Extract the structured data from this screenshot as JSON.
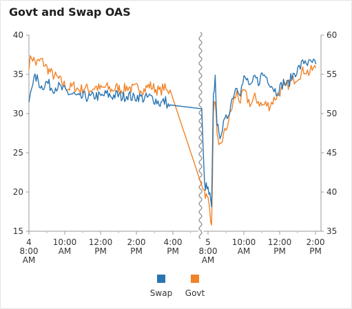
{
  "title": "Govt and Swap OAS",
  "chart_data": {
    "type": "line",
    "title": "Govt and Swap OAS",
    "x_ticks": [
      {
        "line1": "4",
        "line2": "8:00",
        "line3": "AM"
      },
      {
        "line1": "10:00",
        "line2": "AM",
        "line3": ""
      },
      {
        "line1": "12:00",
        "line2": "PM",
        "line3": ""
      },
      {
        "line1": "2:00",
        "line2": "PM",
        "line3": ""
      },
      {
        "line1": "4:00",
        "line2": "PM",
        "line3": ""
      },
      {
        "line1": "5",
        "line2": "8:00",
        "line3": "AM"
      },
      {
        "line1": "10:00",
        "line2": "AM",
        "line3": ""
      },
      {
        "line1": "12:00",
        "line2": "PM",
        "line3": ""
      },
      {
        "line1": "2:00",
        "line2": "PM",
        "line3": ""
      }
    ],
    "axis_break": "between 4:00 PM and 5 8:00 AM",
    "y_left": {
      "min": 15,
      "max": 40,
      "ticks": [
        "15",
        "20",
        "25",
        "30",
        "35",
        "40"
      ]
    },
    "y_right": {
      "min": 35,
      "max": 60,
      "ticks": [
        "35",
        "40",
        "45",
        "50",
        "55",
        "60"
      ]
    },
    "x_unit": "hours after 8:00 AM on each day",
    "series": [
      {
        "name": "Swap",
        "axis": "left",
        "color": "#2a74b0",
        "points": [
          [
            0.0,
            31.6
          ],
          [
            0.15,
            33.8
          ],
          [
            0.4,
            34.6
          ],
          [
            0.7,
            33.4
          ],
          [
            1.0,
            34.0
          ],
          [
            1.3,
            33.2
          ],
          [
            1.6,
            33.5
          ],
          [
            1.9,
            33.0
          ],
          [
            2.2,
            32.6
          ],
          [
            2.5,
            32.4
          ],
          [
            2.8,
            31.9
          ],
          [
            3.1,
            32.2
          ],
          [
            3.4,
            32.0
          ],
          [
            3.7,
            32.3
          ],
          [
            4.0,
            32.1
          ],
          [
            4.3,
            32.5
          ],
          [
            4.6,
            32.2
          ],
          [
            4.9,
            32.4
          ],
          [
            5.2,
            32.1
          ],
          [
            5.5,
            32.4
          ],
          [
            5.8,
            32.0
          ],
          [
            6.1,
            32.2
          ],
          [
            6.4,
            31.9
          ],
          [
            6.7,
            32.1
          ],
          [
            7.0,
            31.8
          ],
          [
            7.3,
            31.3
          ],
          [
            7.6,
            31.6
          ],
          [
            7.75,
            31.0
          ],
          [
            7.85,
            31.1
          ]
        ]
      },
      {
        "name": "Govt",
        "axis": "right",
        "color": "#f08228",
        "points": [
          [
            0.0,
            56.3
          ],
          [
            0.15,
            57.3
          ],
          [
            0.4,
            56.4
          ],
          [
            0.7,
            56.8
          ],
          [
            1.0,
            55.8
          ],
          [
            1.3,
            55.0
          ],
          [
            1.6,
            54.5
          ],
          [
            1.9,
            53.8
          ],
          [
            2.2,
            53.2
          ],
          [
            2.5,
            53.5
          ],
          [
            2.8,
            53.0
          ],
          [
            3.1,
            53.3
          ],
          [
            3.4,
            53.0
          ],
          [
            3.7,
            53.4
          ],
          [
            4.0,
            53.1
          ],
          [
            4.3,
            53.4
          ],
          [
            4.6,
            53.0
          ],
          [
            4.9,
            53.3
          ],
          [
            5.2,
            53.0
          ],
          [
            5.5,
            53.4
          ],
          [
            5.8,
            53.1
          ],
          [
            6.1,
            53.4
          ],
          [
            6.4,
            53.0
          ],
          [
            6.7,
            53.6
          ],
          [
            7.0,
            53.2
          ],
          [
            7.3,
            52.8
          ],
          [
            7.5,
            53.4
          ],
          [
            7.7,
            52.7
          ],
          [
            7.85,
            53.0
          ]
        ]
      }
    ],
    "series_day2": [
      {
        "name": "Swap",
        "points": [
          [
            -0.35,
            30.2
          ],
          [
            -0.2,
            21.0
          ],
          [
            -0.1,
            20.6
          ],
          [
            0.0,
            20.2
          ],
          [
            0.1,
            19.4
          ],
          [
            0.2,
            17.8
          ],
          [
            0.3,
            32.0
          ],
          [
            0.4,
            34.6
          ],
          [
            0.5,
            29.0
          ],
          [
            0.6,
            27.0
          ],
          [
            0.8,
            28.2
          ],
          [
            1.0,
            29.2
          ],
          [
            1.2,
            30.6
          ],
          [
            1.4,
            32.4
          ],
          [
            1.6,
            33.6
          ],
          [
            1.8,
            32.8
          ],
          [
            2.0,
            34.4
          ],
          [
            2.2,
            34.2
          ],
          [
            2.4,
            33.2
          ],
          [
            2.6,
            34.6
          ],
          [
            2.8,
            34.0
          ],
          [
            3.0,
            35.0
          ],
          [
            3.2,
            34.8
          ],
          [
            3.4,
            34.2
          ],
          [
            3.6,
            33.4
          ],
          [
            3.8,
            32.8
          ],
          [
            4.0,
            33.2
          ],
          [
            4.2,
            34.0
          ],
          [
            4.4,
            33.6
          ],
          [
            4.6,
            34.4
          ],
          [
            4.8,
            35.2
          ],
          [
            5.0,
            35.6
          ],
          [
            5.2,
            36.2
          ],
          [
            5.4,
            36.8
          ],
          [
            5.6,
            36.3
          ],
          [
            5.8,
            36.5
          ],
          [
            6.0,
            36.3
          ]
        ]
      },
      {
        "name": "Govt",
        "points": [
          [
            -0.35,
            41.2
          ],
          [
            -0.2,
            40.2
          ],
          [
            -0.1,
            39.4
          ],
          [
            0.0,
            39.0
          ],
          [
            0.1,
            38.2
          ],
          [
            0.2,
            35.2
          ],
          [
            0.3,
            50.0
          ],
          [
            0.4,
            52.0
          ],
          [
            0.5,
            47.0
          ],
          [
            0.6,
            45.4
          ],
          [
            0.8,
            46.8
          ],
          [
            1.0,
            48.0
          ],
          [
            1.2,
            49.6
          ],
          [
            1.4,
            51.4
          ],
          [
            1.6,
            52.6
          ],
          [
            1.8,
            51.6
          ],
          [
            2.0,
            52.8
          ],
          [
            2.2,
            51.8
          ],
          [
            2.4,
            51.2
          ],
          [
            2.6,
            52.0
          ],
          [
            2.8,
            51.6
          ],
          [
            3.0,
            51.0
          ],
          [
            3.2,
            51.2
          ],
          [
            3.4,
            51.0
          ],
          [
            3.6,
            51.6
          ],
          [
            3.8,
            52.2
          ],
          [
            4.0,
            52.8
          ],
          [
            4.2,
            53.2
          ],
          [
            4.4,
            53.6
          ],
          [
            4.6,
            54.0
          ],
          [
            4.8,
            54.4
          ],
          [
            5.0,
            54.8
          ],
          [
            5.2,
            55.2
          ],
          [
            5.4,
            55.6
          ],
          [
            5.6,
            55.2
          ],
          [
            5.8,
            55.6
          ],
          [
            6.0,
            55.8
          ]
        ]
      }
    ],
    "legend": [
      {
        "label": "Swap",
        "color": "#2a74b0"
      },
      {
        "label": "Govt",
        "color": "#f08228"
      }
    ],
    "legend_position": "bottom",
    "grid": false
  }
}
